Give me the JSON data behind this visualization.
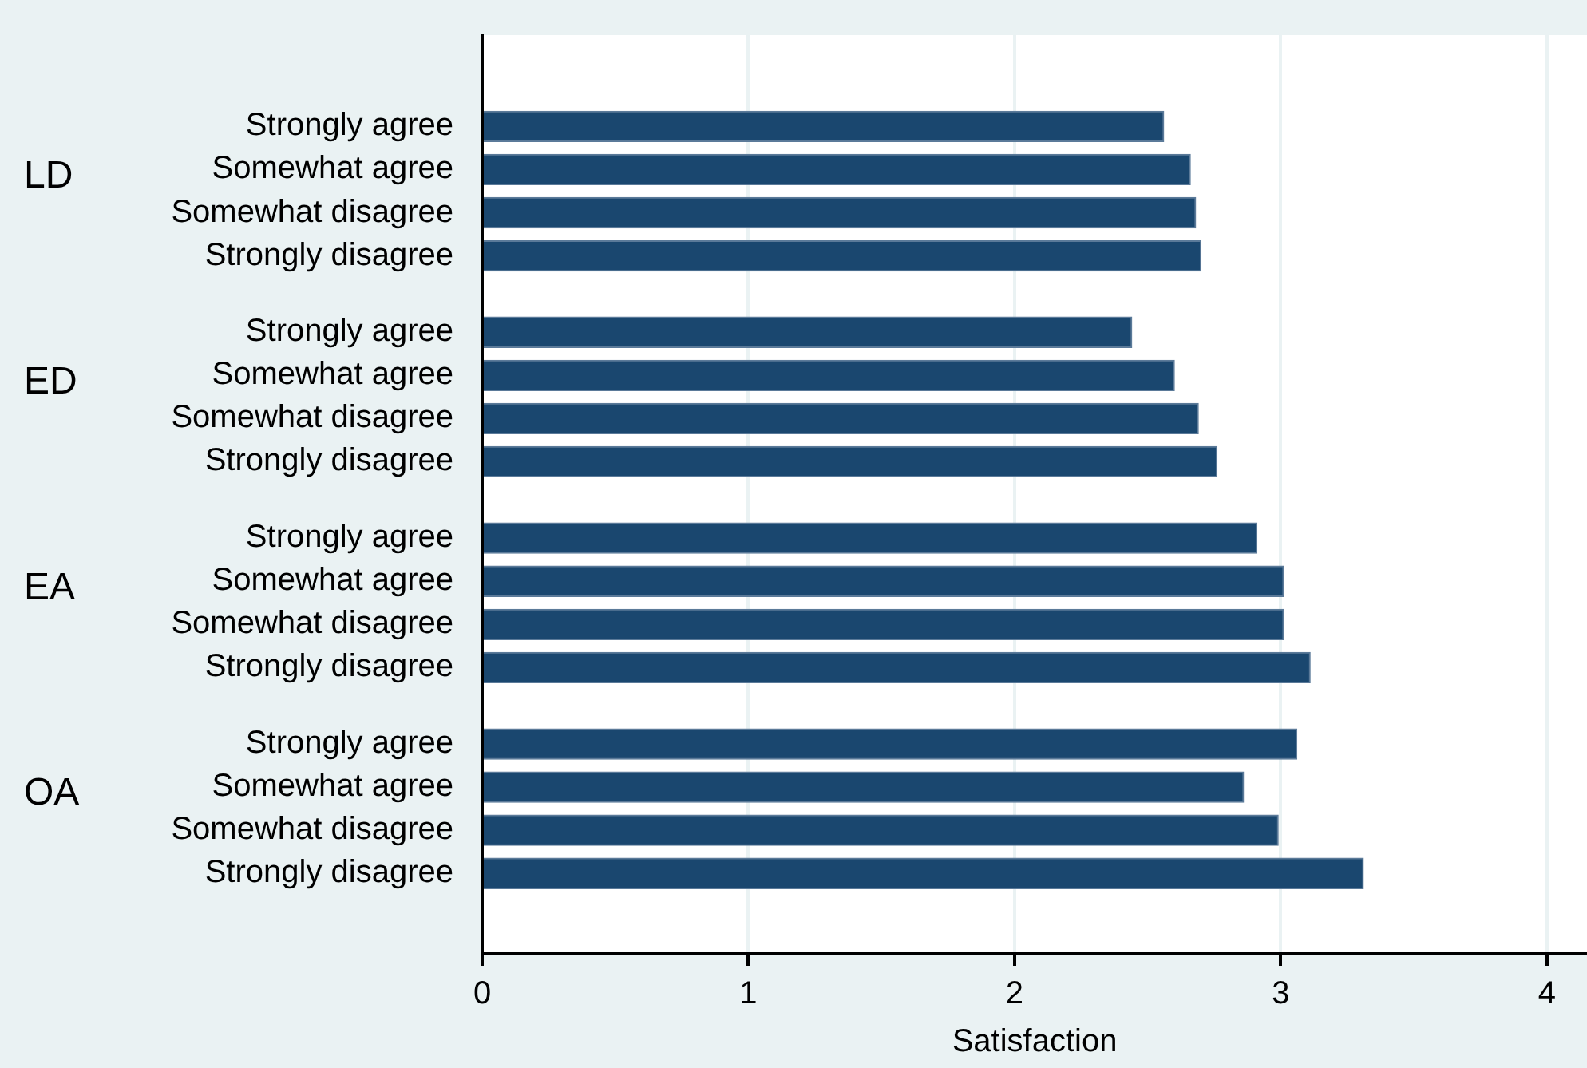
{
  "chart_data": {
    "type": "bar",
    "orientation": "horizontal",
    "xlabel": "Satisfaction",
    "categories": [
      "Strongly agree",
      "Somewhat agree",
      "Somewhat disagree",
      "Strongly disagree",
      "Strongly agree",
      "Somewhat agree",
      "Somewhat disagree",
      "Strongly disagree",
      "Strongly agree",
      "Somewhat agree",
      "Somewhat disagree",
      "Strongly disagree",
      "Strongly agree",
      "Somewhat agree",
      "Somewhat disagree",
      "Strongly disagree"
    ],
    "annotations": [
      "LD",
      "ED",
      "EA",
      "OA"
    ],
    "values": [
      2.56,
      2.66,
      2.68,
      2.7,
      2.44,
      2.6,
      2.69,
      2.76,
      2.91,
      3.01,
      3.01,
      3.11,
      3.06,
      2.86,
      2.99,
      3.31
    ],
    "color": "#1a476f",
    "xlim": [
      0,
      4.15
    ],
    "xticks": [
      0,
      1,
      2,
      3,
      4
    ],
    "grid": "x",
    "legend": false
  }
}
